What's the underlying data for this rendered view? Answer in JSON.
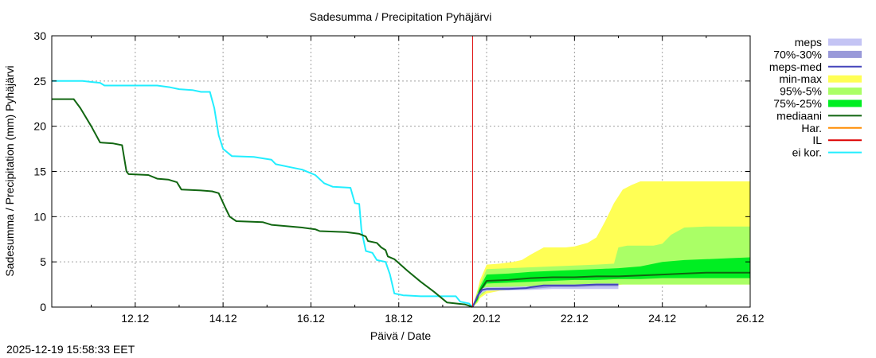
{
  "chart_data": {
    "type": "line",
    "title": "Sadesumma / Precipitation  Pyhäjärvi",
    "xlabel": "Päivä / Date",
    "ylabel": "Sadesumma / Precipitation (mm)  Pyhäjärvi",
    "x_unit": "days since 2025-12-11 00:00",
    "xlim": [
      -0.9,
      15
    ],
    "ylim": [
      0,
      30
    ],
    "x_ticks": [
      {
        "label": "12.12",
        "x": 1
      },
      {
        "label": "14.12",
        "x": 3
      },
      {
        "label": "16.12",
        "x": 5
      },
      {
        "label": "18.12",
        "x": 7
      },
      {
        "label": "20.12",
        "x": 9
      },
      {
        "label": "22.12",
        "x": 11
      },
      {
        "label": "24.12",
        "x": 13
      },
      {
        "label": "26.12",
        "x": 15
      }
    ],
    "y_ticks": [
      0,
      5,
      10,
      15,
      20,
      25,
      30
    ],
    "grid": true,
    "now_line_x": 8.68,
    "legend_position": "right",
    "legend": [
      {
        "key": "meps",
        "label": "meps",
        "color": "#c4c4f4",
        "kind": "box"
      },
      {
        "key": "meps70",
        "label": "70%-30%",
        "color": "#9999d9",
        "kind": "box"
      },
      {
        "key": "mepsmed",
        "label": "meps-med",
        "color": "#4444bb",
        "kind": "line"
      },
      {
        "key": "minmax",
        "label": "min-max",
        "color": "#ffff55",
        "kind": "box"
      },
      {
        "key": "p95",
        "label": "95%-5%",
        "color": "#aaff66",
        "kind": "box"
      },
      {
        "key": "p75",
        "label": "75%-25%",
        "color": "#00ee22",
        "kind": "box"
      },
      {
        "key": "median",
        "label": "mediaani",
        "color": "#116611",
        "kind": "line"
      },
      {
        "key": "har",
        "label": "Har.",
        "color": "#ff8c00",
        "kind": "line"
      },
      {
        "key": "il",
        "label": "IL",
        "color": "#dd0000",
        "kind": "line"
      },
      {
        "key": "eikor",
        "label": "ei kor.",
        "color": "#22eeff",
        "kind": "line"
      }
    ],
    "observed": {
      "mediaani": [
        [
          -0.9,
          23
        ],
        [
          -0.4,
          23
        ],
        [
          -0.25,
          22
        ],
        [
          0,
          20
        ],
        [
          0.2,
          18.2
        ],
        [
          0.5,
          18.1
        ],
        [
          0.7,
          17.9
        ],
        [
          0.8,
          15
        ],
        [
          0.85,
          14.7
        ],
        [
          1.3,
          14.6
        ],
        [
          1.5,
          14.2
        ],
        [
          1.75,
          14.1
        ],
        [
          1.95,
          13.8
        ],
        [
          2.05,
          13
        ],
        [
          2.5,
          12.9
        ],
        [
          2.75,
          12.8
        ],
        [
          2.9,
          12.6
        ],
        [
          3.05,
          11
        ],
        [
          3.15,
          10
        ],
        [
          3.3,
          9.5
        ],
        [
          3.9,
          9.4
        ],
        [
          4.1,
          9.1
        ],
        [
          4.8,
          8.8
        ],
        [
          5.1,
          8.6
        ],
        [
          5.2,
          8.4
        ],
        [
          5.8,
          8.3
        ],
        [
          6.1,
          8.1
        ],
        [
          6.25,
          7.8
        ],
        [
          6.3,
          7.3
        ],
        [
          6.5,
          7.1
        ],
        [
          6.6,
          6.6
        ],
        [
          6.7,
          6.3
        ],
        [
          6.75,
          5.6
        ],
        [
          6.9,
          5.3
        ],
        [
          7.2,
          4.0
        ],
        [
          7.5,
          2.8
        ],
        [
          7.8,
          1.7
        ],
        [
          8.1,
          0.5
        ],
        [
          8.5,
          0.3
        ],
        [
          8.6,
          0.15
        ],
        [
          8.68,
          0
        ]
      ],
      "ei_kor": [
        [
          -0.9,
          25
        ],
        [
          -0.2,
          25
        ],
        [
          0,
          24.9
        ],
        [
          0.2,
          24.8
        ],
        [
          0.3,
          24.5
        ],
        [
          1.5,
          24.5
        ],
        [
          1.8,
          24.3
        ],
        [
          2.0,
          24.1
        ],
        [
          2.3,
          24
        ],
        [
          2.5,
          23.8
        ],
        [
          2.7,
          23.8
        ],
        [
          2.8,
          22
        ],
        [
          2.9,
          19
        ],
        [
          3.0,
          17.5
        ],
        [
          3.2,
          16.7
        ],
        [
          3.7,
          16.6
        ],
        [
          4.1,
          16.3
        ],
        [
          4.2,
          15.8
        ],
        [
          4.5,
          15.5
        ],
        [
          4.8,
          15.2
        ],
        [
          5.1,
          14.6
        ],
        [
          5.3,
          13.7
        ],
        [
          5.5,
          13.3
        ],
        [
          5.9,
          13.2
        ],
        [
          6.0,
          11.5
        ],
        [
          6.1,
          11.4
        ],
        [
          6.15,
          8.5
        ],
        [
          6.25,
          6.2
        ],
        [
          6.4,
          6.0
        ],
        [
          6.5,
          5.2
        ],
        [
          6.7,
          5.0
        ],
        [
          6.8,
          3.6
        ],
        [
          6.9,
          1.5
        ],
        [
          7.1,
          1.3
        ],
        [
          7.5,
          1.2
        ],
        [
          8.3,
          1.2
        ],
        [
          8.4,
          0.6
        ],
        [
          8.6,
          0.4
        ],
        [
          8.68,
          0
        ]
      ]
    },
    "forecast": {
      "minmax": {
        "x": [
          8.68,
          8.8,
          8.85,
          9.0,
          9.3,
          9.6,
          9.8,
          10.0,
          10.3,
          10.6,
          10.8,
          11.0,
          11.3,
          11.5,
          11.7,
          11.9,
          12.1,
          12.3,
          12.5,
          13,
          14,
          15
        ],
        "low": [
          0,
          0.5,
          1.0,
          1.5,
          1.8,
          1.9,
          2.0,
          2.1,
          2.1,
          2.1,
          2.2,
          2.2,
          2.3,
          2.3,
          2.4,
          2.4,
          2.5,
          2.5,
          2.5,
          2.5,
          2.5,
          2.5
        ],
        "high": [
          0,
          2,
          3,
          4.7,
          4.8,
          5,
          5.2,
          5.8,
          6.6,
          6.6,
          6.6,
          6.7,
          7.1,
          7.7,
          9.5,
          11.5,
          13,
          13.5,
          13.9,
          13.9,
          13.9,
          13.9
        ]
      },
      "p95": {
        "x": [
          8.68,
          8.8,
          8.85,
          9.0,
          9.5,
          10.0,
          10.5,
          11.0,
          11.5,
          11.9,
          12.0,
          12.2,
          12.5,
          12.8,
          13.0,
          13.2,
          13.5,
          14,
          15
        ],
        "low": [
          0,
          0.6,
          1.2,
          1.8,
          2.0,
          2.1,
          2.2,
          2.2,
          2.3,
          2.4,
          2.5,
          2.5,
          2.5,
          2.5,
          2.5,
          2.5,
          2.5,
          2.5,
          2.5
        ],
        "high": [
          0,
          1.8,
          2.5,
          4.2,
          4.3,
          4.4,
          4.5,
          4.6,
          4.7,
          4.8,
          6.6,
          6.8,
          6.8,
          6.8,
          7.0,
          8.0,
          8.8,
          8.9,
          8.9
        ]
      },
      "p75": {
        "x": [
          8.68,
          8.8,
          8.85,
          9.0,
          9.5,
          10.0,
          10.5,
          11.0,
          11.5,
          12.0,
          12.5,
          13.0,
          13.5,
          14,
          14.5,
          15
        ],
        "low": [
          0,
          0.8,
          1.5,
          2.6,
          2.7,
          2.8,
          2.9,
          3.0,
          3.0,
          3.1,
          3.1,
          3.2,
          3.2,
          3.2,
          3.2,
          3.2
        ],
        "high": [
          0,
          1.5,
          2.2,
          3.6,
          3.7,
          3.9,
          4.0,
          4.1,
          4.2,
          4.3,
          4.5,
          5.0,
          5.2,
          5.3,
          5.4,
          5.5
        ]
      },
      "median": {
        "x": [
          8.68,
          8.8,
          8.85,
          9.0,
          9.5,
          10.0,
          10.5,
          11.0,
          11.5,
          12.0,
          12.5,
          13.0,
          13.5,
          14.0,
          14.5,
          15
        ],
        "y": [
          0,
          1.2,
          1.8,
          2.9,
          3.0,
          3.2,
          3.3,
          3.3,
          3.4,
          3.4,
          3.5,
          3.6,
          3.7,
          3.8,
          3.8,
          3.8
        ]
      },
      "meps": {
        "x": [
          8.68,
          8.8,
          8.9,
          9.0,
          10.0,
          10.5,
          11.0,
          11.5,
          12.0
        ],
        "low": [
          0,
          1.0,
          1.6,
          1.8,
          1.9,
          2.0,
          2.0,
          2.0,
          2.0
        ],
        "high": [
          0,
          1.5,
          2.1,
          2.2,
          2.3,
          2.5,
          2.5,
          2.6,
          2.6
        ]
      },
      "meps70": {
        "x": [
          8.68,
          8.8,
          8.9,
          9.0,
          10.0,
          10.5,
          11.0,
          11.5,
          12.0
        ],
        "low": [
          0,
          1.2,
          1.8,
          1.9,
          2.0,
          2.2,
          2.2,
          2.3,
          2.3
        ],
        "high": [
          0,
          1.4,
          2.0,
          2.1,
          2.2,
          2.4,
          2.4,
          2.5,
          2.5
        ]
      },
      "meps_med": {
        "x": [
          8.68,
          8.8,
          8.9,
          9.0,
          9.5,
          9.9,
          10.0,
          10.3,
          11.0,
          11.5,
          12.0
        ],
        "y": [
          0,
          1.3,
          1.9,
          2.0,
          2.0,
          2.1,
          2.2,
          2.4,
          2.4,
          2.5,
          2.5
        ]
      }
    }
  },
  "footer": {
    "timestamp": "2025-12-19 15:58:33 EET"
  }
}
